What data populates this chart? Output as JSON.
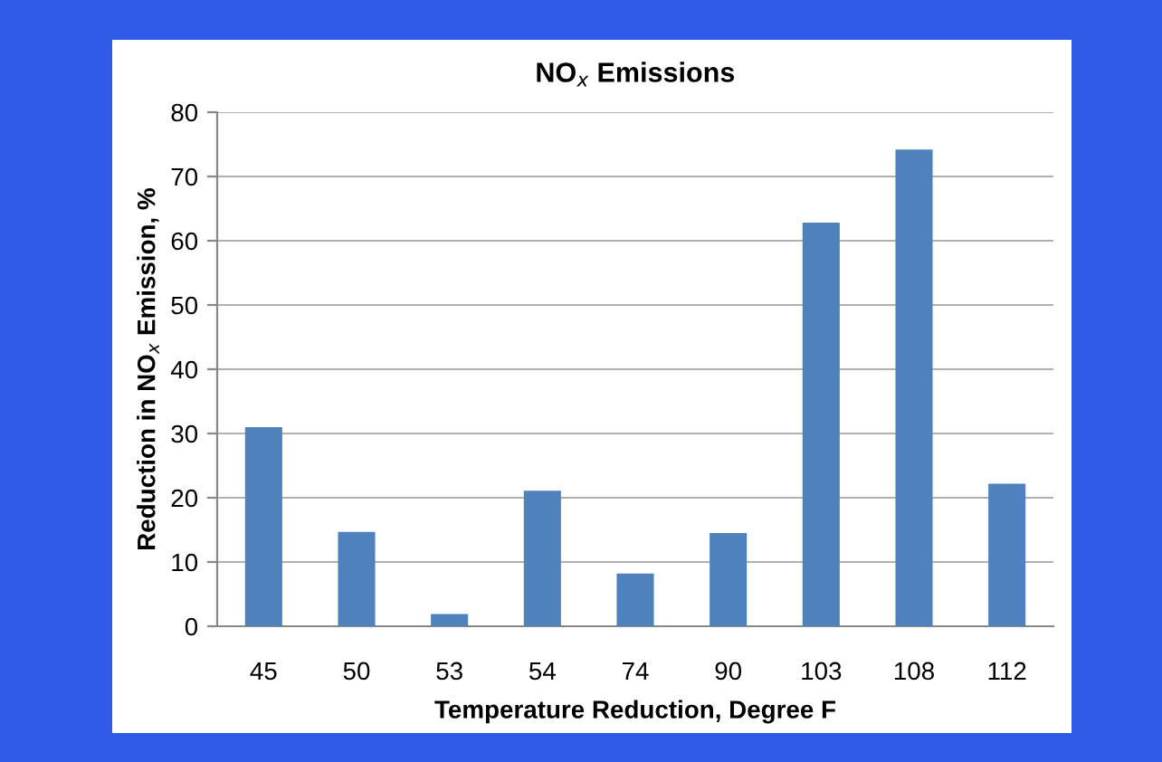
{
  "chart_data": {
    "type": "bar",
    "title": "NO$_{x}$ Emissions",
    "xlabel": "Temperature Reduction, Degree F",
    "ylabel": "Reduction in NO$_{x}$ Emission, %",
    "categories": [
      "45",
      "50",
      "53",
      "54",
      "74",
      "90",
      "103",
      "108",
      "112"
    ],
    "values": [
      31,
      14.7,
      1.9,
      21.1,
      8.2,
      14.5,
      62.8,
      74.2,
      22.2
    ],
    "color": "#4f81bd",
    "ylim": [
      0,
      80
    ],
    "yticks": [
      0,
      10,
      20,
      30,
      40,
      50,
      60,
      70,
      80
    ],
    "grid": "y",
    "legend": false
  }
}
